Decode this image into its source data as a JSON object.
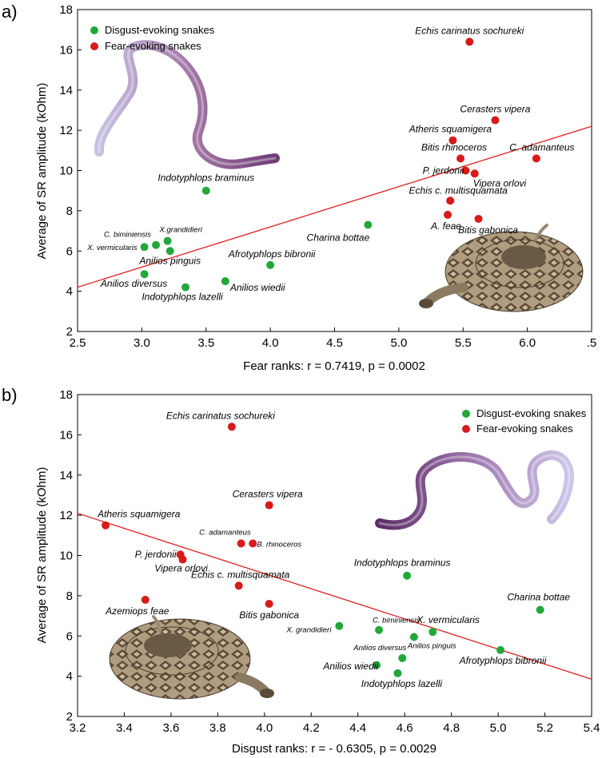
{
  "chart_data": [
    {
      "panel": "a)",
      "type": "scatter",
      "xlabel": "Fear ranks: r = 0.7419, p = 0.0002",
      "ylabel": "Average of SR amplitude (kOhm)",
      "xlim": [
        2.5,
        6.5
      ],
      "ylim": [
        2,
        18
      ],
      "xticks": [
        "2.5",
        "3.0",
        "3.5",
        "4.0",
        "4.5",
        "5.0",
        "5.5",
        "6.0",
        ".5"
      ],
      "yticks": [
        "2",
        "4",
        "6",
        "8",
        "10",
        "12",
        "14",
        "16",
        "18"
      ],
      "legend": [
        {
          "name": "Disgust-evoking snakes",
          "color": "#22a83a"
        },
        {
          "name": "Fear-evoking snakes",
          "color": "#d91a1a"
        }
      ],
      "legend_position": "top-left",
      "regression": {
        "x": [
          2.5,
          6.5
        ],
        "y": [
          4.2,
          12.2
        ]
      },
      "series": [
        {
          "name": "Disgust-evoking snakes",
          "color": "#22a83a",
          "points": [
            {
              "x": 3.5,
              "y": 9.0,
              "label": "Indotyphlops braminus",
              "la": "middle",
              "lx": 0,
              "ly": -12,
              "fs": 12
            },
            {
              "x": 3.02,
              "y": 6.2,
              "label": "X. vermicularis",
              "la": "end",
              "lx": -9,
              "ly": 4,
              "fs": 9.5
            },
            {
              "x": 3.11,
              "y": 6.3,
              "label": "C. biminiensis",
              "la": "end",
              "lx": -6,
              "ly": -10,
              "fs": 9.5
            },
            {
              "x": 3.2,
              "y": 6.5,
              "label": "X.grandidieri",
              "la": "start",
              "lx": -10,
              "ly": -11,
              "fs": 9.5
            },
            {
              "x": 3.22,
              "y": 6.0,
              "label": "Anilios pinguis",
              "la": "middle",
              "lx": 0,
              "ly": 16,
              "fs": 12
            },
            {
              "x": 3.02,
              "y": 4.85,
              "label": "Anilios diversus",
              "la": "middle",
              "lx": -13,
              "ly": 16,
              "fs": 12
            },
            {
              "x": 3.34,
              "y": 4.2,
              "label": "Indotyphlops lazelli",
              "la": "middle",
              "lx": -4,
              "ly": 16,
              "fs": 12
            },
            {
              "x": 3.65,
              "y": 4.5,
              "label": "Anilios wiedii",
              "la": "start",
              "lx": 6,
              "ly": 12,
              "fs": 12
            },
            {
              "x": 4.0,
              "y": 5.3,
              "label": "Afrotyphlops bibronii",
              "la": "middle",
              "lx": 2,
              "ly": -10,
              "fs": 12
            },
            {
              "x": 4.76,
              "y": 7.3,
              "label": "Charina bottae",
              "la": "end",
              "lx": 2,
              "ly": 20,
              "fs": 12
            }
          ]
        },
        {
          "name": "Fear-evoking snakes",
          "color": "#d91a1a",
          "points": [
            {
              "x": 5.55,
              "y": 16.4,
              "label": "Echis carinatus sochureki",
              "la": "middle",
              "lx": 0,
              "ly": -10,
              "fs": 12
            },
            {
              "x": 5.75,
              "y": 12.5,
              "label": "Cerasters vipera",
              "la": "middle",
              "lx": 0,
              "ly": -10,
              "fs": 12
            },
            {
              "x": 5.42,
              "y": 11.5,
              "label": "Atheris squamigera",
              "la": "middle",
              "lx": -3,
              "ly": -10,
              "fs": 12
            },
            {
              "x": 5.48,
              "y": 10.6,
              "label": "Bitis rhinoceros",
              "la": "middle",
              "lx": -8,
              "ly": -10,
              "fs": 12
            },
            {
              "x": 6.07,
              "y": 10.6,
              "label": "C. adamanteus",
              "la": "middle",
              "lx": 7,
              "ly": -10,
              "fs": 12
            },
            {
              "x": 5.52,
              "y": 10.0,
              "label": "P. jerdonii",
              "la": "end",
              "lx": -2,
              "ly": 4,
              "fs": 12
            },
            {
              "x": 5.59,
              "y": 9.85,
              "label": "Vipera orlovi",
              "la": "start",
              "lx": -2,
              "ly": 16,
              "fs": 12
            },
            {
              "x": 5.4,
              "y": 8.5,
              "label": "Echis c. multisquamata",
              "la": "middle",
              "lx": 10,
              "ly": -9,
              "fs": 12
            },
            {
              "x": 5.38,
              "y": 7.8,
              "label": "A. feae",
              "la": "middle",
              "lx": -2,
              "ly": 18,
              "fs": 12
            },
            {
              "x": 5.62,
              "y": 7.6,
              "label": "Bitis gabonica",
              "la": "middle",
              "lx": 12,
              "ly": 18,
              "fs": 12
            }
          ]
        }
      ]
    },
    {
      "panel": "b)",
      "type": "scatter",
      "xlabel": "Disgust ranks: r = - 0.6305, p = 0.0029",
      "ylabel": "Average of SR amplitude (kOhm)",
      "xlim": [
        3.2,
        5.4
      ],
      "ylim": [
        2,
        18
      ],
      "xticks": [
        "3.2",
        "3.4",
        "3.6",
        "3.8",
        "4.0",
        "4.2",
        "4.4",
        "4.6",
        "4.8",
        "5.0",
        "5.2",
        "5.4"
      ],
      "yticks": [
        "2",
        "4",
        "6",
        "8",
        "10",
        "12",
        "14",
        "16",
        "18"
      ],
      "legend": [
        {
          "name": "Disgust-evoking snakes",
          "color": "#22a83a"
        },
        {
          "name": "Fear-evoking snakes",
          "color": "#d91a1a"
        }
      ],
      "legend_position": "top-right",
      "regression": {
        "x": [
          3.2,
          5.4
        ],
        "y": [
          12.1,
          3.85
        ]
      },
      "series": [
        {
          "name": "Disgust-evoking snakes",
          "color": "#22a83a",
          "points": [
            {
              "x": 4.61,
              "y": 9.0,
              "label": "Indotyphlops braminus",
              "la": "middle",
              "lx": -6,
              "ly": -12,
              "fs": 12
            },
            {
              "x": 5.18,
              "y": 7.3,
              "label": "Charina bottae",
              "la": "middle",
              "lx": -2,
              "ly": -12,
              "fs": 12
            },
            {
              "x": 4.32,
              "y": 6.5,
              "label": "X. grandidieri",
              "la": "end",
              "lx": -10,
              "ly": 8,
              "fs": 9.5
            },
            {
              "x": 4.49,
              "y": 6.3,
              "label": "C. biminiensis",
              "la": "start",
              "lx": -8,
              "ly": -9,
              "fs": 9.5
            },
            {
              "x": 4.72,
              "y": 6.2,
              "label": "X. vermicularis",
              "la": "start",
              "lx": -20,
              "ly": -11,
              "fs": 12
            },
            {
              "x": 4.64,
              "y": 5.95,
              "label": "Anilios pinguis",
              "la": "start",
              "lx": -8,
              "ly": 14,
              "fs": 9.5
            },
            {
              "x": 4.59,
              "y": 4.9,
              "label": "Anilios diversus",
              "la": "end",
              "lx": 5,
              "ly": -10,
              "fs": 9.5
            },
            {
              "x": 4.48,
              "y": 4.55,
              "label": "Anilios wiedii",
              "la": "end",
              "lx": 2,
              "ly": 5,
              "fs": 12
            },
            {
              "x": 4.57,
              "y": 4.15,
              "label": "Indotyphlops lazelli",
              "la": "middle",
              "lx": 5,
              "ly": 17,
              "fs": 12
            },
            {
              "x": 5.01,
              "y": 5.3,
              "label": "Afrotyphlops bibronii",
              "la": "middle",
              "lx": 3,
              "ly": 17,
              "fs": 12
            }
          ]
        },
        {
          "name": "Fear-evoking snakes",
          "color": "#d91a1a",
          "points": [
            {
              "x": 3.86,
              "y": 16.4,
              "label": "Echis carinatus sochureki",
              "la": "middle",
              "lx": -14,
              "ly": -10,
              "fs": 12
            },
            {
              "x": 4.02,
              "y": 12.5,
              "label": "Cerasters vipera",
              "la": "middle",
              "lx": -2,
              "ly": -10,
              "fs": 12
            },
            {
              "x": 3.32,
              "y": 11.5,
              "label": "Atheris squamigera",
              "la": "start",
              "lx": -10,
              "ly": -10,
              "fs": 12
            },
            {
              "x": 3.9,
              "y": 10.6,
              "label": "C. adamanteus",
              "la": "end",
              "lx": 12,
              "ly": -11,
              "fs": 9.5
            },
            {
              "x": 3.95,
              "y": 10.6,
              "label": "B. rhinoceros",
              "la": "start",
              "lx": 5,
              "ly": 4,
              "fs": 9.5
            },
            {
              "x": 3.64,
              "y": 10.05,
              "label": "P. jerdonii",
              "la": "end",
              "lx": -5,
              "ly": 4,
              "fs": 12
            },
            {
              "x": 3.65,
              "y": 9.8,
              "label": "Vipera orlovi",
              "la": "middle",
              "lx": -2,
              "ly": 15,
              "fs": 12
            },
            {
              "x": 3.89,
              "y": 8.5,
              "label": "Echis c. multisquamata",
              "la": "middle",
              "lx": 2,
              "ly": -10,
              "fs": 12
            },
            {
              "x": 3.49,
              "y": 7.8,
              "label": "Azemiops feae",
              "la": "middle",
              "lx": -10,
              "ly": 18,
              "fs": 12
            },
            {
              "x": 4.02,
              "y": 7.6,
              "label": "Bitis gabonica",
              "la": "middle",
              "lx": 0,
              "ly": 18,
              "fs": 12
            }
          ]
        }
      ]
    }
  ]
}
